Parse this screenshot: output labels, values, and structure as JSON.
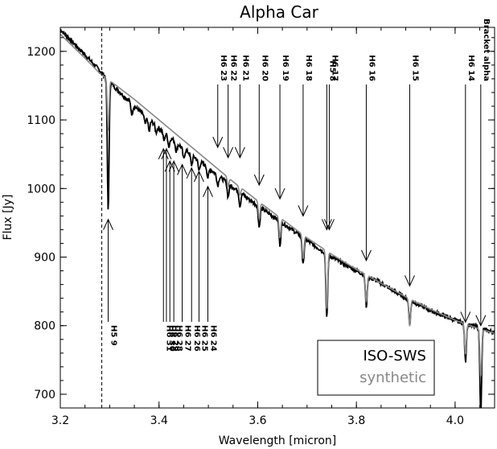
{
  "chart_data": {
    "type": "line",
    "title": "Alpha Car",
    "xlabel": "Wavelength [micron]",
    "ylabel": "Flux [Jy]",
    "xlim": [
      3.2,
      4.08
    ],
    "ylim": [
      680,
      1235
    ],
    "grid": false,
    "legend_placement": "bottom-right",
    "xticks": [
      3.2,
      3.4,
      3.6,
      3.8,
      4.0
    ],
    "xtick_labels": [
      "3.2",
      "3.4",
      "3.6",
      "3.8",
      "4.0"
    ],
    "yticks": [
      700,
      800,
      900,
      1000,
      1100,
      1200
    ],
    "ytick_labels": [
      "700",
      "800",
      "900",
      "1000",
      "1100",
      "1200"
    ],
    "vline_x": 3.284,
    "colors": {
      "observed": "#000000",
      "synthetic": "#888888"
    },
    "series": [
      {
        "name": "ISO-SWS",
        "continuum": [
          [
            3.2,
            1232
          ],
          [
            3.25,
            1195
          ],
          [
            3.28,
            1172
          ],
          [
            3.31,
            1148
          ],
          [
            3.35,
            1120
          ],
          [
            3.4,
            1088
          ],
          [
            3.45,
            1058
          ],
          [
            3.5,
            1030
          ],
          [
            3.55,
            1002
          ],
          [
            3.6,
            975
          ],
          [
            3.65,
            950
          ],
          [
            3.7,
            924
          ],
          [
            3.75,
            900
          ],
          [
            3.8,
            880
          ],
          [
            3.85,
            862
          ],
          [
            3.9,
            840
          ],
          [
            3.95,
            822
          ],
          [
            4.0,
            808
          ],
          [
            4.05,
            796
          ],
          [
            4.08,
            790
          ]
        ],
        "absorptions": [
          [
            3.297,
            190
          ],
          [
            3.345,
            15
          ],
          [
            3.372,
            12
          ],
          [
            3.38,
            18
          ],
          [
            3.394,
            10
          ],
          [
            3.41,
            12
          ],
          [
            3.42,
            15
          ],
          [
            3.435,
            13
          ],
          [
            3.45,
            15
          ],
          [
            3.466,
            15
          ],
          [
            3.481,
            14
          ],
          [
            3.499,
            15
          ],
          [
            3.519,
            15
          ],
          [
            3.54,
            20
          ],
          [
            3.564,
            20
          ],
          [
            3.603,
            30
          ],
          [
            3.645,
            35
          ],
          [
            3.692,
            40
          ],
          [
            3.74,
            95
          ],
          [
            3.82,
            45
          ],
          [
            3.908,
            35
          ],
          [
            4.021,
            55
          ],
          [
            4.052,
            125
          ]
        ]
      },
      {
        "name": "synthetic",
        "continuum": [
          [
            3.2,
            1225
          ],
          [
            3.25,
            1190
          ],
          [
            3.28,
            1168
          ],
          [
            3.31,
            1152
          ],
          [
            3.35,
            1130
          ],
          [
            3.4,
            1100
          ],
          [
            3.45,
            1070
          ],
          [
            3.5,
            1040
          ],
          [
            3.55,
            1010
          ],
          [
            3.6,
            982
          ],
          [
            3.65,
            955
          ],
          [
            3.7,
            928
          ],
          [
            3.75,
            904
          ],
          [
            3.8,
            882
          ],
          [
            3.85,
            862
          ],
          [
            3.9,
            842
          ],
          [
            3.95,
            824
          ],
          [
            4.0,
            808
          ],
          [
            4.05,
            795
          ],
          [
            4.08,
            789
          ]
        ],
        "absorptions": [
          [
            3.297,
            75
          ],
          [
            3.54,
            12
          ],
          [
            3.564,
            12
          ],
          [
            3.603,
            25
          ],
          [
            3.645,
            30
          ],
          [
            3.692,
            35
          ],
          [
            3.74,
            85
          ],
          [
            3.82,
            40
          ],
          [
            3.908,
            40
          ],
          [
            4.021,
            45
          ],
          [
            4.052,
            70
          ]
        ]
      }
    ],
    "annotations": [
      {
        "label": "H6 23",
        "x": 3.519,
        "y": 1060,
        "direction": "down",
        "label_position": "top"
      },
      {
        "label": "H6 22",
        "x": 3.54,
        "y": 1045,
        "direction": "down",
        "label_position": "top"
      },
      {
        "label": "H6 21",
        "x": 3.564,
        "y": 1045,
        "direction": "down",
        "label_position": "top"
      },
      {
        "label": "H6 20",
        "x": 3.603,
        "y": 1005,
        "direction": "down",
        "label_position": "top"
      },
      {
        "label": "H6 19",
        "x": 3.645,
        "y": 985,
        "direction": "down",
        "label_position": "top"
      },
      {
        "label": "H6 18",
        "x": 3.692,
        "y": 960,
        "direction": "down",
        "label_position": "top"
      },
      {
        "label": "H5 8",
        "x": 3.74,
        "y": 940,
        "direction": "down",
        "label_position": "top"
      },
      {
        "label": "H6 17",
        "x": 3.745,
        "y": 940,
        "direction": "down",
        "label_position": "top"
      },
      {
        "label": "H6 16",
        "x": 3.82,
        "y": 895,
        "direction": "down",
        "label_position": "top"
      },
      {
        "label": "H6 15",
        "x": 3.908,
        "y": 858,
        "direction": "down",
        "label_position": "top"
      },
      {
        "label": "H6 14",
        "x": 4.021,
        "y": 805,
        "direction": "down",
        "label_position": "top"
      },
      {
        "label": "Bracket alpha",
        "x": 4.052,
        "y": 800,
        "direction": "down",
        "label_position": "top"
      },
      {
        "label": "H5 9",
        "x": 3.297,
        "y": 955,
        "direction": "up",
        "label_position": "bottom"
      },
      {
        "label": "H6 31",
        "x": 3.409,
        "y": 1058,
        "direction": "up",
        "label_position": "bottom"
      },
      {
        "label": "H6 30",
        "x": 3.415,
        "y": 1058,
        "direction": "up",
        "label_position": "bottom"
      },
      {
        "label": "H6 29",
        "x": 3.422,
        "y": 1040,
        "direction": "up",
        "label_position": "bottom"
      },
      {
        "label": "H6 28",
        "x": 3.43,
        "y": 1040,
        "direction": "up",
        "label_position": "bottom"
      },
      {
        "label": "H6 27",
        "x": 3.447,
        "y": 1035,
        "direction": "up",
        "label_position": "bottom"
      },
      {
        "label": "H6 26",
        "x": 3.466,
        "y": 1030,
        "direction": "up",
        "label_position": "bottom"
      },
      {
        "label": "H6 25",
        "x": 3.481,
        "y": 1025,
        "direction": "up",
        "label_position": "bottom"
      },
      {
        "label": "H6 24",
        "x": 3.499,
        "y": 1003,
        "direction": "up",
        "label_position": "bottom"
      }
    ]
  }
}
